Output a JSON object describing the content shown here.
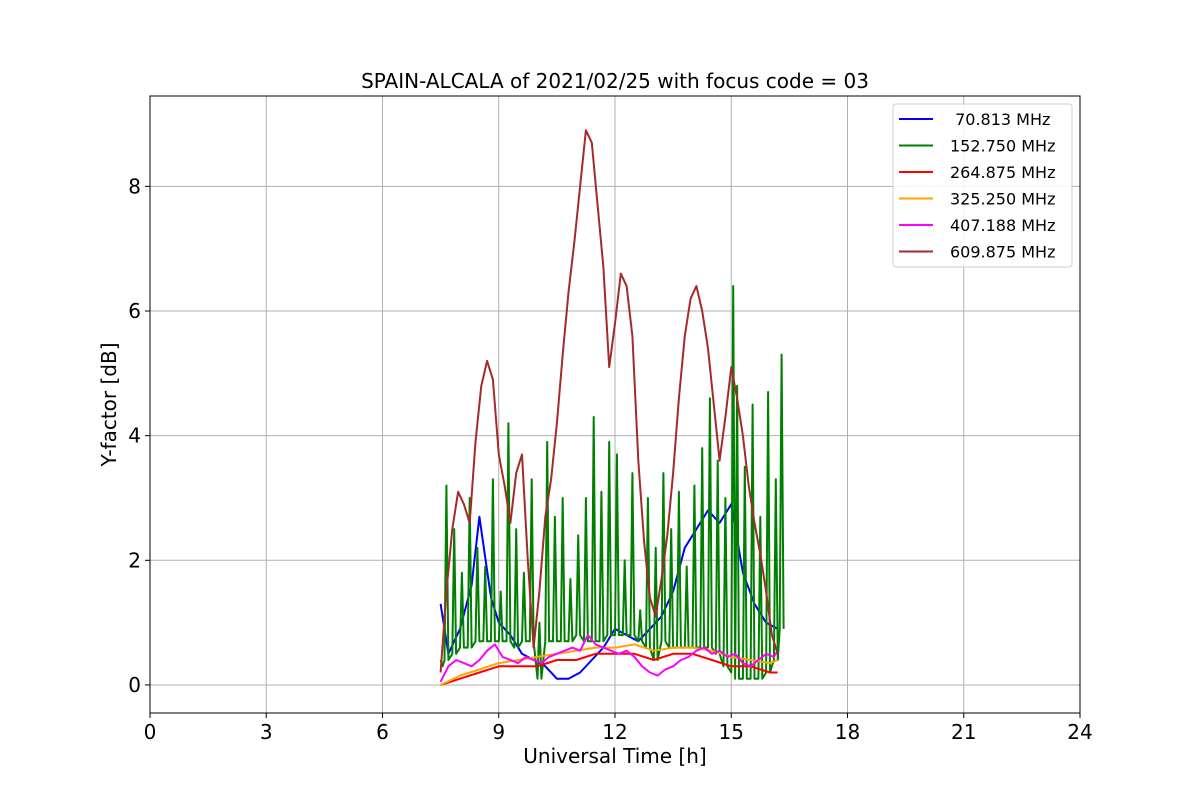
{
  "chart_data": {
    "type": "line",
    "title": "SPAIN-ALCALA of 2021/02/25 with focus code = 03",
    "xlabel": "Universal Time [h]",
    "ylabel": "Y-factor [dB]",
    "xlim": [
      0,
      24
    ],
    "ylim": [
      -0.45,
      9.45
    ],
    "xticks": [
      0,
      3,
      6,
      9,
      12,
      15,
      18,
      21,
      24
    ],
    "yticks": [
      0,
      2,
      4,
      6,
      8
    ],
    "grid": true,
    "legend_position": "top-right",
    "series": [
      {
        "name": " 70.813 MHz",
        "color": "#0000ff",
        "x": [
          7.5,
          7.7,
          8.0,
          8.3,
          8.5,
          8.8,
          9.0,
          9.3,
          9.6,
          9.9,
          10.2,
          10.5,
          10.8,
          11.1,
          11.4,
          11.7,
          12.0,
          12.3,
          12.6,
          12.9,
          13.2,
          13.5,
          13.8,
          14.1,
          14.4,
          14.7,
          15.0,
          15.3,
          15.6,
          15.9,
          16.2
        ],
        "values": [
          1.3,
          0.5,
          0.9,
          1.6,
          2.7,
          1.4,
          1.0,
          0.8,
          0.5,
          0.4,
          0.3,
          0.1,
          0.1,
          0.2,
          0.4,
          0.6,
          0.9,
          0.8,
          0.7,
          0.9,
          1.1,
          1.5,
          2.2,
          2.5,
          2.8,
          2.6,
          2.9,
          1.8,
          1.3,
          1.0,
          0.9
        ]
      },
      {
        "name": "152.750 MHz",
        "color": "#008000",
        "x": [
          7.5,
          7.6,
          7.8,
          8.0,
          8.2,
          8.4,
          8.6,
          8.8,
          9.0,
          9.2,
          9.4,
          9.6,
          9.8,
          10.0,
          10.2,
          10.4,
          10.6,
          10.8,
          11.0,
          11.2,
          11.4,
          11.6,
          11.8,
          12.0,
          12.2,
          12.4,
          12.6,
          12.8,
          13.0,
          13.2,
          13.4,
          13.6,
          13.8,
          14.0,
          14.2,
          14.4,
          14.6,
          14.8,
          15.0,
          15.1,
          15.3,
          15.5,
          15.7,
          15.9,
          16.1,
          16.25
        ],
        "values": [
          0.3,
          3.2,
          2.5,
          1.8,
          3.0,
          2.2,
          1.9,
          3.3,
          1.5,
          4.2,
          2.5,
          1.8,
          3.3,
          1.0,
          3.9,
          2.7,
          3.0,
          1.7,
          2.4,
          3.0,
          4.3,
          3.1,
          3.9,
          3.7,
          2.0,
          3.4,
          1.2,
          3.0,
          2.2,
          3.4,
          2.5,
          3.1,
          1.9,
          3.2,
          3.8,
          4.6,
          3.6,
          3.0,
          6.4,
          4.8,
          3.5,
          4.5,
          2.7,
          4.7,
          3.3,
          5.3
        ],
        "baseline": [
          0.4,
          0.4,
          0.5,
          0.6,
          0.6,
          0.7,
          0.7,
          0.7,
          0.7,
          0.7,
          0.6,
          0.7,
          0.7,
          0.1,
          0.7,
          0.7,
          0.7,
          0.7,
          0.8,
          0.7,
          0.7,
          0.7,
          0.8,
          0.8,
          0.8,
          0.8,
          0.7,
          0.6,
          0.4,
          0.7,
          0.6,
          0.6,
          0.6,
          0.6,
          0.6,
          0.6,
          0.5,
          0.3,
          0.2,
          0.1,
          0.1,
          0.1,
          0.1,
          0.2,
          0.4,
          0.9
        ]
      },
      {
        "name": "264.875 MHz",
        "color": "#ff0000",
        "x": [
          7.5,
          8.0,
          8.5,
          9.0,
          9.5,
          10.0,
          10.5,
          11.0,
          11.5,
          12.0,
          12.5,
          13.0,
          13.5,
          14.0,
          14.5,
          15.0,
          15.5,
          16.0,
          16.2
        ],
        "values": [
          0.0,
          0.1,
          0.2,
          0.3,
          0.3,
          0.3,
          0.4,
          0.4,
          0.5,
          0.5,
          0.5,
          0.4,
          0.5,
          0.5,
          0.4,
          0.3,
          0.3,
          0.2,
          0.2
        ]
      },
      {
        "name": "325.250 MHz",
        "color": "#ffa500",
        "x": [
          7.5,
          8.0,
          8.5,
          9.0,
          9.5,
          10.0,
          10.5,
          11.0,
          11.5,
          12.0,
          12.5,
          13.0,
          13.5,
          14.0,
          14.5,
          15.0,
          15.5,
          16.0,
          16.2
        ],
        "values": [
          0.0,
          0.15,
          0.25,
          0.35,
          0.4,
          0.45,
          0.5,
          0.55,
          0.6,
          0.6,
          0.65,
          0.55,
          0.6,
          0.6,
          0.55,
          0.45,
          0.4,
          0.35,
          0.4
        ]
      },
      {
        "name": "407.188 MHz",
        "color": "#ff00ff",
        "x": [
          7.5,
          7.7,
          7.9,
          8.1,
          8.3,
          8.5,
          8.7,
          8.9,
          9.1,
          9.3,
          9.5,
          9.7,
          9.9,
          10.1,
          10.3,
          10.5,
          10.7,
          10.9,
          11.1,
          11.3,
          11.5,
          11.7,
          11.9,
          12.1,
          12.3,
          12.5,
          12.7,
          12.9,
          13.1,
          13.3,
          13.5,
          13.7,
          13.9,
          14.1,
          14.3,
          14.5,
          14.7,
          14.9,
          15.1,
          15.3,
          15.5,
          15.7,
          15.9,
          16.1,
          16.2
        ],
        "values": [
          0.05,
          0.3,
          0.4,
          0.35,
          0.3,
          0.4,
          0.55,
          0.65,
          0.45,
          0.4,
          0.35,
          0.45,
          0.4,
          0.35,
          0.45,
          0.5,
          0.55,
          0.6,
          0.55,
          0.8,
          0.65,
          0.6,
          0.55,
          0.5,
          0.55,
          0.45,
          0.3,
          0.2,
          0.15,
          0.25,
          0.3,
          0.4,
          0.45,
          0.55,
          0.6,
          0.5,
          0.55,
          0.45,
          0.5,
          0.35,
          0.3,
          0.4,
          0.5,
          0.45,
          0.55
        ]
      },
      {
        "name": "609.875 MHz",
        "color": "#a52a2a",
        "x": [
          7.5,
          7.65,
          7.8,
          7.95,
          8.1,
          8.25,
          8.4,
          8.55,
          8.7,
          8.85,
          9.0,
          9.15,
          9.3,
          9.45,
          9.6,
          9.75,
          9.9,
          10.05,
          10.2,
          10.35,
          10.5,
          10.65,
          10.8,
          10.95,
          11.1,
          11.25,
          11.4,
          11.55,
          11.7,
          11.85,
          12.0,
          12.15,
          12.3,
          12.45,
          12.6,
          12.75,
          12.9,
          13.05,
          13.2,
          13.35,
          13.5,
          13.65,
          13.8,
          13.95,
          14.1,
          14.25,
          14.4,
          14.55,
          14.7,
          14.85,
          15.0,
          15.15,
          15.3,
          15.45,
          15.6,
          15.75,
          15.9,
          16.05,
          16.2
        ],
        "values": [
          0.2,
          1.5,
          2.5,
          3.1,
          2.9,
          2.6,
          3.9,
          4.8,
          5.2,
          4.9,
          3.7,
          3.2,
          2.6,
          3.4,
          3.7,
          2.0,
          0.6,
          1.5,
          2.7,
          3.3,
          4.2,
          5.3,
          6.3,
          7.1,
          8.0,
          8.9,
          8.7,
          7.7,
          6.7,
          5.1,
          5.8,
          6.6,
          6.4,
          5.6,
          3.6,
          2.3,
          1.4,
          1.1,
          1.7,
          2.4,
          3.4,
          4.6,
          5.6,
          6.2,
          6.4,
          6.0,
          5.4,
          4.5,
          3.6,
          4.3,
          5.1,
          4.6,
          4.0,
          3.2,
          2.6,
          2.1,
          1.5,
          0.8,
          0.5
        ]
      }
    ]
  }
}
